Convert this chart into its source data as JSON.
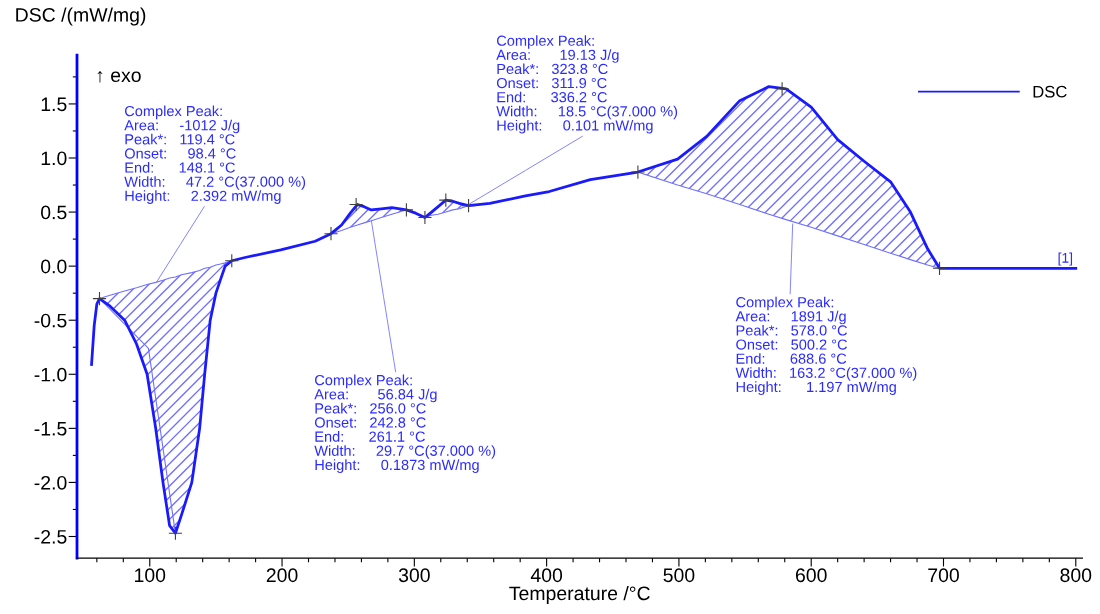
{
  "chart_data": {
    "type": "line",
    "xlabel": "Temperature /°C",
    "ylabel": "DSC /(mW/mg)",
    "xlim": [
      45,
      805
    ],
    "ylim": [
      -2.7,
      1.95
    ],
    "xticks": [
      {
        "value": 60,
        "label": null
      },
      {
        "value": 80,
        "label": null
      },
      100,
      {
        "value": 120,
        "label": null
      },
      {
        "value": 140,
        "label": null
      },
      {
        "value": 160,
        "label": null
      },
      {
        "value": 180,
        "label": null
      },
      200,
      {
        "value": 220,
        "label": null
      },
      {
        "value": 240,
        "label": null
      },
      {
        "value": 260,
        "label": null
      },
      {
        "value": 280,
        "label": null
      },
      300,
      {
        "value": 320,
        "label": null
      },
      {
        "value": 340,
        "label": null
      },
      {
        "value": 360,
        "label": null
      },
      {
        "value": 380,
        "label": null
      },
      400,
      {
        "value": 420,
        "label": null
      },
      {
        "value": 440,
        "label": null
      },
      {
        "value": 460,
        "label": null
      },
      {
        "value": 480,
        "label": null
      },
      500,
      {
        "value": 520,
        "label": null
      },
      {
        "value": 540,
        "label": null
      },
      {
        "value": 560,
        "label": null
      },
      {
        "value": 580,
        "label": null
      },
      600,
      {
        "value": 620,
        "label": null
      },
      {
        "value": 640,
        "label": null
      },
      {
        "value": 660,
        "label": null
      },
      {
        "value": 680,
        "label": null
      },
      700,
      {
        "value": 720,
        "label": null
      },
      {
        "value": 740,
        "label": null
      },
      {
        "value": 760,
        "label": null
      },
      {
        "value": 780,
        "label": null
      },
      800
    ],
    "yticks": [
      {
        "value": -2.5,
        "label": "-2.5"
      },
      {
        "value": -2.25,
        "label": null
      },
      {
        "value": -2.0,
        "label": "-2.0"
      },
      {
        "value": -1.75,
        "label": null
      },
      {
        "value": -1.5,
        "label": "-1.5"
      },
      {
        "value": -1.25,
        "label": null
      },
      {
        "value": -1.0,
        "label": "-1.0"
      },
      {
        "value": -0.75,
        "label": null
      },
      {
        "value": -0.5,
        "label": "-0.5"
      },
      {
        "value": -0.25,
        "label": null
      },
      {
        "value": 0,
        "label": "0.0"
      },
      {
        "value": 0.25,
        "label": null
      },
      {
        "value": 0.5,
        "label": "0.5"
      },
      {
        "value": 0.75,
        "label": null
      },
      {
        "value": 1.0,
        "label": "1.0"
      },
      {
        "value": 1.25,
        "label": null
      },
      {
        "value": 1.5,
        "label": "1.5"
      },
      {
        "value": 1.75,
        "label": null
      }
    ],
    "legend": "top right",
    "series": [
      {
        "name": "DSC",
        "color": "#1a1aff",
        "x": [
          56,
          58,
          60,
          62,
          70,
          81,
          90,
          98,
          104.5,
          110,
          115,
          119.4,
          124,
          131.8,
          137.7,
          141.5,
          145.7,
          150,
          153.6,
          157,
          162,
          172,
          199,
          225,
          237,
          245,
          251.6,
          257,
          262,
          267.5,
          275,
          283,
          294,
          301,
          308,
          313,
          318,
          323.8,
          329,
          334,
          341,
          357,
          384,
          402,
          433,
          469,
          499,
          521,
          546,
          568,
          581,
          600,
          620,
          640,
          660,
          675,
          688,
          697,
          750,
          800
        ],
        "values": [
          -0.91,
          -0.55,
          -0.35,
          -0.3,
          -0.37,
          -0.5,
          -0.72,
          -1.0,
          -1.5,
          -2.0,
          -2.4,
          -2.47,
          -2.3,
          -2.0,
          -1.5,
          -1.0,
          -0.5,
          -0.25,
          -0.12,
          0.0,
          0.05,
          0.08,
          0.15,
          0.23,
          0.3,
          0.38,
          0.49,
          0.57,
          0.55,
          0.52,
          0.53,
          0.54,
          0.52,
          0.49,
          0.45,
          0.5,
          0.55,
          0.61,
          0.6,
          0.58,
          0.56,
          0.58,
          0.65,
          0.69,
          0.8,
          0.87,
          0.99,
          1.2,
          1.53,
          1.66,
          1.64,
          1.47,
          1.17,
          0.97,
          0.78,
          0.5,
          0.16,
          -0.02,
          -0.02,
          -0.02
        ]
      },
      {
        "color": "#7070ff",
        "x": [
          62,
          70,
          81,
          90,
          98,
          104.5,
          110,
          115,
          119.4,
          124,
          131.8,
          137.7,
          141.5,
          145.7,
          150,
          153.6,
          157,
          162
        ],
        "values": [
          -0.3,
          -0.27,
          -0.23,
          -0.2,
          -0.17,
          -0.15,
          -0.13,
          -0.11,
          -0.1,
          -0.08,
          -0.06,
          -0.04,
          -0.02,
          -0.01,
          0.01,
          0.02,
          0.03,
          0.05
        ],
        "lower": [
          -0.3,
          -0.37,
          -0.5,
          -0.72,
          -1.0,
          -1.5,
          -2.0,
          -2.4,
          -2.47,
          -2.3,
          -2.0,
          -1.5,
          -1.0,
          -0.5,
          -0.25,
          -0.12,
          0.0,
          0.05
        ],
        "upper": [
          -0.3,
          -0.27,
          -0.23,
          -0.2,
          -0.17,
          -0.15,
          -0.13,
          -0.11,
          -0.1,
          -0.08,
          -0.06,
          -0.04,
          -0.02,
          -0.01,
          0.01,
          0.02,
          0.03,
          0.05
        ]
      },
      {
        "color": "#7070ff",
        "x": [
          237,
          245,
          251.6,
          257,
          262,
          267.5,
          275,
          283,
          294
        ],
        "values": [
          0.3,
          0.33,
          0.36,
          0.38,
          0.4,
          0.42,
          0.45,
          0.48,
          0.52
        ],
        "lower": [
          0.3,
          0.33,
          0.36,
          0.38,
          0.4,
          0.42,
          0.45,
          0.48,
          0.52
        ],
        "upper": [
          0.3,
          0.38,
          0.49,
          0.57,
          0.55,
          0.52,
          0.53,
          0.54,
          0.52
        ]
      },
      {
        "color": "#7070ff",
        "x": [
          308,
          313,
          318,
          323.8,
          329,
          334,
          341
        ],
        "values": [
          0.45,
          0.47,
          0.48,
          0.5,
          0.52,
          0.53,
          0.56
        ],
        "lower": [
          0.45,
          0.47,
          0.48,
          0.5,
          0.52,
          0.53,
          0.56
        ],
        "upper": [
          0.45,
          0.5,
          0.55,
          0.61,
          0.6,
          0.58,
          0.56
        ]
      },
      {
        "color": "#7070ff",
        "x": [
          469,
          499,
          521,
          546,
          568,
          581,
          600,
          620,
          640,
          660,
          675,
          688,
          697
        ],
        "values": [
          0.87,
          0.75,
          0.67,
          0.57,
          0.48,
          0.43,
          0.36,
          0.28,
          0.2,
          0.12,
          0.06,
          0.01,
          -0.02
        ],
        "lower": [
          0.87,
          0.75,
          0.67,
          0.57,
          0.48,
          0.43,
          0.36,
          0.28,
          0.2,
          0.12,
          0.06,
          0.01,
          -0.02
        ],
        "upper": [
          0.87,
          0.99,
          1.2,
          1.53,
          1.66,
          1.64,
          1.47,
          1.17,
          0.97,
          0.78,
          0.5,
          0.16,
          -0.02
        ]
      },
      {
        "color": "#7070ff",
        "x": [
          62,
          99,
          119.4
        ],
        "values": [
          -0.3,
          -0.76,
          -2.47
        ]
      },
      {
        "type": "scatter",
        "marker": "cross",
        "color": "#404040",
        "x": [
          62,
          119.4,
          162,
          237,
          256,
          294,
          308,
          323.8,
          341,
          469,
          578,
          697
        ],
        "values": [
          -0.3,
          -2.47,
          0.05,
          0.3,
          0.57,
          0.52,
          0.45,
          0.61,
          0.56,
          0.87,
          1.64,
          -0.02
        ]
      }
    ],
    "annotations": [
      "↑ exo",
      {
        "text": "Complex Peak:\nArea:     -1012 J/g\nPeak*:   119.4 °C\nOnset:     98.4 °C\nEnd:      148.1 °C\nWidth:     47.2 °C(37.000 %)\nHeight:     2.392 mW/mg",
        "x": 105,
        "y": -0.15
      },
      {
        "text": "Complex Peak:\nArea:       56.84 J/g\nPeak*:   256.0 °C\nOnset:   242.8 °C\nEnd:      261.1 °C\nWidth:     29.7 °C(37.000 %)\nHeight:     0.1873 mW/mg",
        "x": 267.5,
        "y": 0.42
      },
      {
        "text": "Complex Peak:\nArea:       19.13 J/g\nPeak*:   323.8 °C\nOnset:   311.9 °C\nEnd:      336.2 °C\nWidth:     18.5 °C(37.000 %)\nHeight:     0.101 mW/mg",
        "x": 341,
        "y": 0.57
      },
      {
        "text": "Complex Peak:\nArea:     1891 J/g\nPeak*:   578.0 °C\nOnset:   500.2 °C\nEnd:      688.6 °C\nWidth:   163.2 °C(37.000 %)\nHeight:      1.197 mW/mg",
        "x": 586,
        "y": 0.39
      },
      {
        "text": "[1]",
        "x": 800,
        "y": -0.02
      }
    ]
  }
}
